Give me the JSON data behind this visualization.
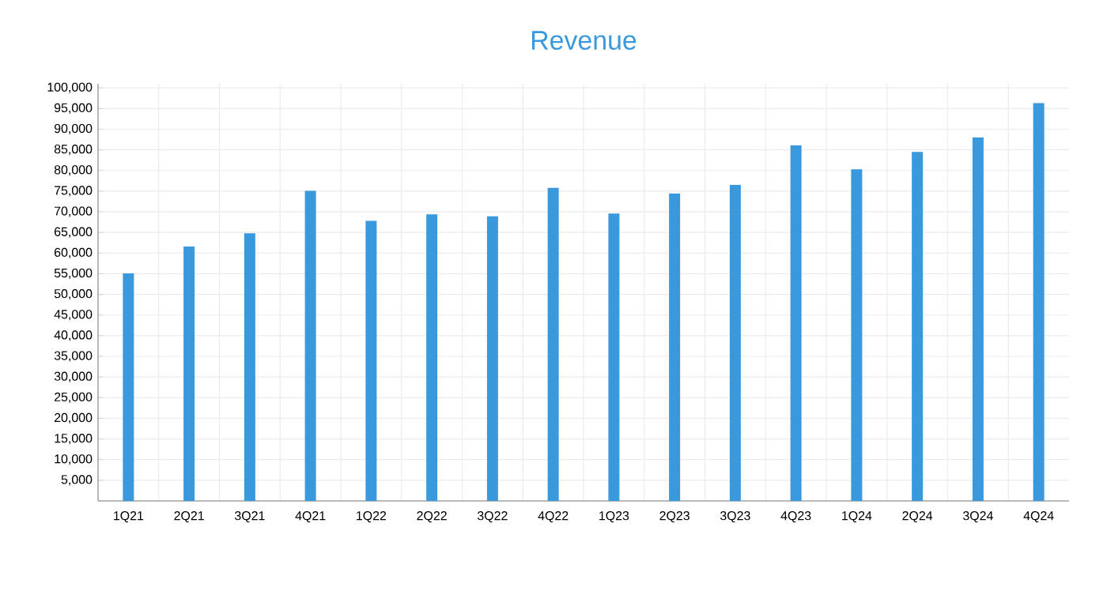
{
  "chart_data": {
    "type": "bar",
    "title": "Revenue",
    "categories": [
      "1Q21",
      "2Q21",
      "3Q21",
      "4Q21",
      "1Q22",
      "2Q22",
      "3Q22",
      "4Q22",
      "1Q23",
      "2Q23",
      "3Q23",
      "4Q23",
      "1Q24",
      "2Q24",
      "3Q24",
      "4Q24"
    ],
    "values": [
      55100,
      61600,
      64800,
      75100,
      67800,
      69400,
      68900,
      75800,
      69600,
      74400,
      76500,
      86100,
      80300,
      84500,
      88000,
      96300
    ],
    "color": "#3a99dc",
    "ylim": [
      0,
      100000
    ],
    "yticks": [
      {
        "value": 0,
        "label": null
      },
      {
        "value": 5000,
        "label": "5,000"
      },
      {
        "value": 10000,
        "label": "10,000"
      },
      {
        "value": 15000,
        "label": "15,000"
      },
      {
        "value": 20000,
        "label": "20,000"
      },
      {
        "value": 25000,
        "label": "25,000"
      },
      {
        "value": 30000,
        "label": "30,000"
      },
      {
        "value": 35000,
        "label": "35,000"
      },
      {
        "value": 40000,
        "label": "40,000"
      },
      {
        "value": 45000,
        "label": "45,000"
      },
      {
        "value": 50000,
        "label": "50,000"
      },
      {
        "value": 55000,
        "label": "55,000"
      },
      {
        "value": 60000,
        "label": "60,000"
      },
      {
        "value": 65000,
        "label": "65,000"
      },
      {
        "value": 70000,
        "label": "70,000"
      },
      {
        "value": 75000,
        "label": "75,000"
      },
      {
        "value": 80000,
        "label": "80,000"
      },
      {
        "value": 85000,
        "label": "85,000"
      },
      {
        "value": 90000,
        "label": "90,000"
      },
      {
        "value": 95000,
        "label": "95,000"
      },
      {
        "value": 100000,
        "label": "100,000"
      }
    ],
    "grid": true
  }
}
